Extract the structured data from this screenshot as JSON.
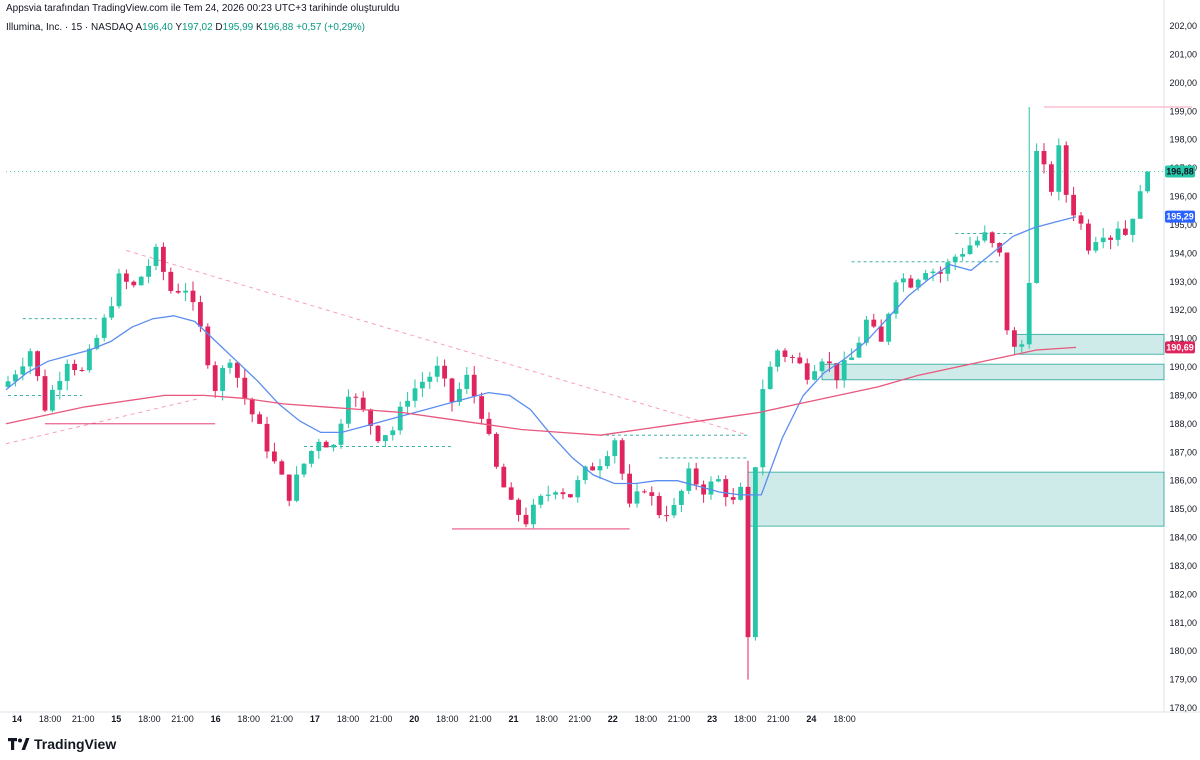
{
  "header": {
    "attribution": "Appsvia tarafından TradingView.com ile Tem 24, 2026 00:23 UTC+3 tarihinde oluşturuldu",
    "symbol": "Illumina, Inc. · 15 · NASDAQ",
    "ohlc_open_label": "A",
    "ohlc_open": "196,40",
    "ohlc_high_label": "Y",
    "ohlc_high": "197,02",
    "ohlc_low_label": "D",
    "ohlc_low": "195,99",
    "ohlc_close_label": "K",
    "ohlc_close": "196,88",
    "change": "+0,57 (+0,29%)"
  },
  "brand": {
    "name": "TradingView",
    "icon": "tradingview-logo-icon"
  },
  "colors": {
    "up": "#26c6a8",
    "down": "#e0245e",
    "ma_fast": "#5b8def",
    "ma_slow": "#e8577d",
    "zone_fill": "rgba(38,166,154,0.22)",
    "zone_border": "#26a69a"
  },
  "chart_data": {
    "type": "candlestick",
    "y_axis": {
      "min": 178,
      "max": 202,
      "step": 1,
      "position": "right",
      "decimal": ","
    },
    "y_ticks": [
      "178,00",
      "179,00",
      "180,00",
      "181,00",
      "182,00",
      "183,00",
      "184,00",
      "185,00",
      "186,00",
      "187,00",
      "188,00",
      "189,00",
      "190,00",
      "191,00",
      "192,00",
      "193,00",
      "194,00",
      "195,00",
      "196,00",
      "197,00",
      "198,00",
      "199,00",
      "200,00",
      "201,00",
      "202,00"
    ],
    "x_ticks": [
      {
        "label": "14",
        "bold": true
      },
      {
        "label": "18:00"
      },
      {
        "label": "21:00"
      },
      {
        "label": "15",
        "bold": true
      },
      {
        "label": "18:00"
      },
      {
        "label": "21:00"
      },
      {
        "label": "16",
        "bold": true
      },
      {
        "label": "18:00"
      },
      {
        "label": "21:00"
      },
      {
        "label": "17",
        "bold": true
      },
      {
        "label": "18:00"
      },
      {
        "label": "21:00"
      },
      {
        "label": "20",
        "bold": true
      },
      {
        "label": "18:00"
      },
      {
        "label": "21:00"
      },
      {
        "label": "21",
        "bold": true
      },
      {
        "label": "18:00"
      },
      {
        "label": "21:00"
      },
      {
        "label": "22",
        "bold": true
      },
      {
        "label": "18:00"
      },
      {
        "label": "21:00"
      },
      {
        "label": "23",
        "bold": true
      },
      {
        "label": "18:00"
      },
      {
        "label": "21:00"
      },
      {
        "label": "24",
        "bold": true
      },
      {
        "label": "18:00"
      }
    ],
    "price_tags": [
      {
        "label": "196,88",
        "value": 196.88,
        "color": "#26c6a8"
      },
      {
        "label": "195,29",
        "value": 195.29,
        "color": "#2962ff"
      },
      {
        "label": "190,69",
        "value": 190.69,
        "color": "#e0245e"
      }
    ],
    "candle_anchors": [
      [
        0,
        189.5
      ],
      [
        3,
        190.6
      ],
      [
        5,
        188.6
      ],
      [
        8,
        190.3
      ],
      [
        10,
        189.8
      ],
      [
        13,
        191.6
      ],
      [
        15,
        193.1
      ],
      [
        17,
        192.8
      ],
      [
        20,
        194.0
      ],
      [
        22,
        192.7
      ],
      [
        24,
        192.8
      ],
      [
        26,
        191.3
      ],
      [
        28,
        189.3
      ],
      [
        30,
        190.4
      ],
      [
        32,
        188.9
      ],
      [
        34,
        187.8
      ],
      [
        36,
        186.6
      ],
      [
        38,
        185.5
      ],
      [
        40,
        186.6
      ],
      [
        42,
        187.5
      ],
      [
        44,
        187.2
      ],
      [
        46,
        189.2
      ],
      [
        48,
        188.4
      ],
      [
        50,
        187.6
      ],
      [
        52,
        187.8
      ],
      [
        54,
        189.0
      ],
      [
        56,
        189.5
      ],
      [
        58,
        189.9
      ],
      [
        60,
        188.8
      ],
      [
        62,
        189.6
      ],
      [
        64,
        188.4
      ],
      [
        66,
        186.4
      ],
      [
        68,
        185.1
      ],
      [
        70,
        184.6
      ],
      [
        72,
        185.3
      ],
      [
        74,
        185.8
      ],
      [
        76,
        185.5
      ],
      [
        78,
        186.3
      ],
      [
        80,
        186.7
      ],
      [
        82,
        187.5
      ],
      [
        84,
        185.0
      ],
      [
        86,
        185.8
      ],
      [
        88,
        184.9
      ],
      [
        90,
        185.0
      ],
      [
        92,
        186.2
      ],
      [
        94,
        185.7
      ],
      [
        96,
        186.0
      ],
      [
        98,
        185.2
      ],
      [
        99,
        185.6
      ],
      [
        100,
        180.3
      ],
      [
        101,
        186.6
      ],
      [
        102,
        189.3
      ],
      [
        104,
        190.6
      ],
      [
        106,
        190.3
      ],
      [
        108,
        189.8
      ],
      [
        110,
        190.4
      ],
      [
        112,
        189.7
      ],
      [
        114,
        190.3
      ],
      [
        116,
        191.6
      ],
      [
        118,
        190.8
      ],
      [
        120,
        193.2
      ],
      [
        122,
        193.0
      ],
      [
        124,
        193.5
      ],
      [
        126,
        193.3
      ],
      [
        128,
        193.9
      ],
      [
        130,
        194.3
      ],
      [
        132,
        194.6
      ],
      [
        134,
        193.9
      ],
      [
        135,
        191.4
      ],
      [
        136,
        190.6
      ],
      [
        137,
        190.8
      ],
      [
        138,
        193.2
      ],
      [
        139,
        197.5
      ],
      [
        140,
        196.9
      ],
      [
        141,
        196.3
      ],
      [
        142,
        197.6
      ],
      [
        143,
        196.1
      ],
      [
        144,
        195.5
      ],
      [
        145,
        195.0
      ],
      [
        146,
        194.3
      ],
      [
        147,
        194.6
      ],
      [
        148,
        194.8
      ],
      [
        149,
        194.6
      ],
      [
        150,
        195.0
      ],
      [
        151,
        194.7
      ],
      [
        152,
        195.4
      ],
      [
        153,
        196.0
      ],
      [
        154,
        196.88
      ]
    ],
    "zones": [
      {
        "from_bar": 100,
        "price_low": 184.4,
        "price_high": 186.3
      },
      {
        "from_bar": 110,
        "price_low": 189.55,
        "price_high": 190.1
      },
      {
        "from_bar": 136,
        "price_low": 190.45,
        "price_high": 191.15
      }
    ],
    "trend_line": {
      "from_bar": 16,
      "from_price": 194.1,
      "to_bar": 100,
      "to_price": 187.6
    },
    "high_line": {
      "from_bar": 140,
      "to_bar": 160,
      "price": 199.15
    },
    "series": [
      {
        "key": "ma_fast",
        "values": [
          189.2,
          189.8,
          190.2,
          190.4,
          190.6,
          190.9,
          191.4,
          191.7,
          191.8,
          191.6,
          190.9,
          190.2,
          189.5,
          188.7,
          188.1,
          187.7,
          187.7,
          187.9,
          188.1,
          188.3,
          188.5,
          188.7,
          188.9,
          189.1,
          189.0,
          188.5,
          187.6,
          186.8,
          186.2,
          185.9,
          185.9,
          186.0,
          186.0,
          185.8,
          185.6,
          185.5,
          185.5,
          187.5,
          189.0,
          189.8,
          190.3,
          190.9,
          191.7,
          192.5,
          193.1,
          193.6,
          193.4,
          194.0,
          194.6,
          194.9,
          195.1,
          195.29
        ]
      },
      {
        "key": "ma_slow",
        "values": [
          188.0,
          188.3,
          188.6,
          188.8,
          189.0,
          189.0,
          188.9,
          188.7,
          188.6,
          188.5,
          188.4,
          188.2,
          188.0,
          187.8,
          187.7,
          187.6,
          187.8,
          188.0,
          188.2,
          188.4,
          188.7,
          189.0,
          189.3,
          189.7,
          190.0,
          190.3,
          190.6,
          190.69
        ]
      }
    ]
  }
}
